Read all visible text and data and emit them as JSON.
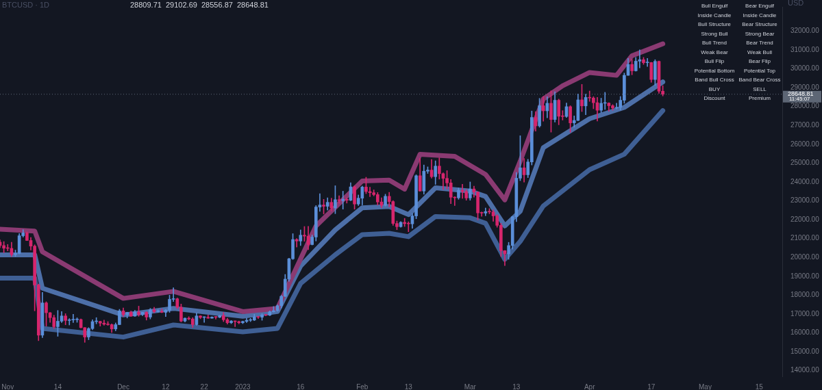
{
  "chart_data": {
    "type": "candlestick",
    "title": "BTCUSD · 1D",
    "ylabel": "USD",
    "x": [
      "2022-10-30",
      "2022-10-31",
      "2022-11-01",
      "2022-11-02",
      "2022-11-03",
      "2022-11-04",
      "2022-11-05",
      "2022-11-06",
      "2022-11-07",
      "2022-11-08",
      "2022-11-09",
      "2022-11-10",
      "2022-11-11",
      "2022-11-12",
      "2022-11-13",
      "2022-11-14",
      "2022-11-15",
      "2022-11-16",
      "2022-11-17",
      "2022-11-18",
      "2022-11-19",
      "2022-11-20",
      "2022-11-21",
      "2022-11-22",
      "2022-11-23",
      "2022-11-24",
      "2022-11-25",
      "2022-11-26",
      "2022-11-27",
      "2022-11-28",
      "2022-11-29",
      "2022-11-30",
      "2022-12-01",
      "2022-12-02",
      "2022-12-03",
      "2022-12-04",
      "2022-12-05",
      "2022-12-06",
      "2022-12-07",
      "2022-12-08",
      "2022-12-09",
      "2022-12-10",
      "2022-12-11",
      "2022-12-12",
      "2022-12-13",
      "2022-12-14",
      "2022-12-15",
      "2022-12-16",
      "2022-12-17",
      "2022-12-18",
      "2022-12-19",
      "2022-12-20",
      "2022-12-21",
      "2022-12-22",
      "2022-12-23",
      "2022-12-24",
      "2022-12-25",
      "2022-12-26",
      "2022-12-27",
      "2022-12-28",
      "2022-12-29",
      "2022-12-30",
      "2022-12-31",
      "2023-01-01",
      "2023-01-02",
      "2023-01-03",
      "2023-01-04",
      "2023-01-05",
      "2023-01-06",
      "2023-01-07",
      "2023-01-08",
      "2023-01-09",
      "2023-01-10",
      "2023-01-11",
      "2023-01-12",
      "2023-01-13",
      "2023-01-14",
      "2023-01-15",
      "2023-01-16",
      "2023-01-17",
      "2023-01-18",
      "2023-01-19",
      "2023-01-20",
      "2023-01-21",
      "2023-01-22",
      "2023-01-23",
      "2023-01-24",
      "2023-01-25",
      "2023-01-26",
      "2023-01-27",
      "2023-01-28",
      "2023-01-29",
      "2023-01-30",
      "2023-01-31",
      "2023-02-01",
      "2023-02-02",
      "2023-02-03",
      "2023-02-04",
      "2023-02-05",
      "2023-02-06",
      "2023-02-07",
      "2023-02-08",
      "2023-02-09",
      "2023-02-10",
      "2023-02-11",
      "2023-02-12",
      "2023-02-13",
      "2023-02-14",
      "2023-02-15",
      "2023-02-16",
      "2023-02-17",
      "2023-02-18",
      "2023-02-19",
      "2023-02-20",
      "2023-02-21",
      "2023-02-22",
      "2023-02-23",
      "2023-02-24",
      "2023-02-25",
      "2023-02-26",
      "2023-02-27",
      "2023-02-28",
      "2023-03-01",
      "2023-03-02",
      "2023-03-03",
      "2023-03-04",
      "2023-03-05",
      "2023-03-06",
      "2023-03-07",
      "2023-03-08",
      "2023-03-09",
      "2023-03-10",
      "2023-03-11",
      "2023-03-12",
      "2023-03-13",
      "2023-03-14",
      "2023-03-15",
      "2023-03-16",
      "2023-03-17",
      "2023-03-18",
      "2023-03-19",
      "2023-03-20",
      "2023-03-21",
      "2023-03-22",
      "2023-03-23",
      "2023-03-24",
      "2023-03-25",
      "2023-03-26",
      "2023-03-27",
      "2023-03-28",
      "2023-03-29",
      "2023-03-30",
      "2023-03-31",
      "2023-04-01",
      "2023-04-02",
      "2023-04-03",
      "2023-04-04",
      "2023-04-05",
      "2023-04-06",
      "2023-04-07",
      "2023-04-08",
      "2023-04-09",
      "2023-04-10",
      "2023-04-11",
      "2023-04-12",
      "2023-04-13",
      "2023-04-14",
      "2023-04-15",
      "2023-04-16",
      "2023-04-17",
      "2023-04-18",
      "2023-04-19",
      "2023-04-20"
    ],
    "ohlc": [
      [
        20810,
        20930,
        20520,
        20630
      ],
      [
        20630,
        20840,
        20250,
        20490
      ],
      [
        20490,
        20690,
        20350,
        20480
      ],
      [
        20480,
        20800,
        20050,
        20150
      ],
      [
        20150,
        20390,
        20050,
        20210
      ],
      [
        20210,
        21270,
        20180,
        21150
      ],
      [
        21150,
        21470,
        21080,
        21300
      ],
      [
        21300,
        21360,
        20890,
        20900
      ],
      [
        20900,
        21060,
        20390,
        20600
      ],
      [
        20600,
        20670,
        17170,
        18540
      ],
      [
        18540,
        18590,
        15590,
        15880
      ],
      [
        15880,
        18150,
        15750,
        17590
      ],
      [
        17590,
        17650,
        16360,
        17070
      ],
      [
        17070,
        17090,
        16560,
        16810
      ],
      [
        16810,
        16940,
        16230,
        16330
      ],
      [
        16330,
        17190,
        15820,
        16620
      ],
      [
        16620,
        17130,
        16550,
        16900
      ],
      [
        16900,
        17020,
        16430,
        16660
      ],
      [
        16660,
        16760,
        16420,
        16690
      ],
      [
        16690,
        16990,
        16550,
        16700
      ],
      [
        16700,
        16800,
        16560,
        16710
      ],
      [
        16710,
        16740,
        16260,
        16280
      ],
      [
        16280,
        16290,
        15500,
        15780
      ],
      [
        15780,
        16280,
        15640,
        16230
      ],
      [
        16230,
        16700,
        16170,
        16600
      ],
      [
        16600,
        16810,
        16480,
        16610
      ],
      [
        16610,
        16620,
        16360,
        16520
      ],
      [
        16520,
        16680,
        16400,
        16460
      ],
      [
        16460,
        16600,
        16400,
        16440
      ],
      [
        16440,
        16480,
        16020,
        16210
      ],
      [
        16210,
        16530,
        16110,
        16440
      ],
      [
        16440,
        17250,
        16430,
        17170
      ],
      [
        17170,
        17320,
        16870,
        16970
      ],
      [
        16970,
        17100,
        16790,
        17090
      ],
      [
        17090,
        17160,
        16870,
        16890
      ],
      [
        16890,
        17200,
        16880,
        17110
      ],
      [
        17110,
        17420,
        16880,
        16970
      ],
      [
        16970,
        17100,
        16910,
        17090
      ],
      [
        17090,
        17130,
        16680,
        16840
      ],
      [
        16840,
        17300,
        16740,
        17230
      ],
      [
        17230,
        17360,
        17070,
        17130
      ],
      [
        17130,
        17230,
        17090,
        17140
      ],
      [
        17140,
        17270,
        17070,
        17090
      ],
      [
        17090,
        17240,
        16870,
        17210
      ],
      [
        17210,
        18000,
        17090,
        17780
      ],
      [
        17780,
        18390,
        17660,
        17810
      ],
      [
        17810,
        17850,
        17280,
        17360
      ],
      [
        17360,
        17530,
        16580,
        16630
      ],
      [
        16630,
        16800,
        16580,
        16780
      ],
      [
        16780,
        16860,
        16690,
        16740
      ],
      [
        16740,
        16810,
        16290,
        16440
      ],
      [
        16440,
        17060,
        16400,
        16900
      ],
      [
        16900,
        16920,
        16750,
        16820
      ],
      [
        16820,
        16860,
        16560,
        16830
      ],
      [
        16830,
        16950,
        16770,
        16780
      ],
      [
        16780,
        16860,
        16770,
        16840
      ],
      [
        16840,
        16860,
        16730,
        16830
      ],
      [
        16830,
        16940,
        16800,
        16920
      ],
      [
        16920,
        17080,
        16600,
        16700
      ],
      [
        16700,
        16780,
        16470,
        16540
      ],
      [
        16540,
        16660,
        16490,
        16630
      ],
      [
        16630,
        16640,
        16330,
        16600
      ],
      [
        16600,
        16630,
        16480,
        16540
      ],
      [
        16540,
        16630,
        16490,
        16610
      ],
      [
        16610,
        16780,
        16550,
        16670
      ],
      [
        16670,
        16770,
        16600,
        16680
      ],
      [
        16680,
        16990,
        16650,
        16850
      ],
      [
        16850,
        16880,
        16760,
        16830
      ],
      [
        16830,
        17020,
        16670,
        16950
      ],
      [
        16950,
        16960,
        16900,
        16940
      ],
      [
        16940,
        17170,
        16910,
        17120
      ],
      [
        17120,
        17400,
        17100,
        17180
      ],
      [
        17180,
        17490,
        17150,
        17440
      ],
      [
        17440,
        17990,
        17320,
        17940
      ],
      [
        17940,
        19100,
        17920,
        18850
      ],
      [
        18850,
        19960,
        18730,
        19930
      ],
      [
        19930,
        21260,
        19890,
        20950
      ],
      [
        20950,
        21000,
        20550,
        20870
      ],
      [
        20870,
        21460,
        20630,
        21180
      ],
      [
        21180,
        21640,
        20860,
        21130
      ],
      [
        21130,
        21650,
        20410,
        20680
      ],
      [
        20680,
        21190,
        20660,
        21080
      ],
      [
        21080,
        22750,
        20870,
        22670
      ],
      [
        22670,
        23380,
        22440,
        22780
      ],
      [
        22780,
        23080,
        22300,
        22710
      ],
      [
        22710,
        23160,
        22510,
        22920
      ],
      [
        22920,
        23140,
        22460,
        22620
      ],
      [
        22620,
        23800,
        22320,
        23060
      ],
      [
        23060,
        23270,
        22870,
        23010
      ],
      [
        23010,
        23510,
        22560,
        23080
      ],
      [
        23080,
        23170,
        22880,
        23030
      ],
      [
        23030,
        23960,
        23000,
        23740
      ],
      [
        23740,
        23790,
        22560,
        22830
      ],
      [
        22830,
        23310,
        22750,
        23140
      ],
      [
        23140,
        23780,
        22780,
        23730
      ],
      [
        23730,
        24250,
        23380,
        23490
      ],
      [
        23490,
        23720,
        23220,
        23430
      ],
      [
        23430,
        23580,
        23260,
        23330
      ],
      [
        23330,
        23440,
        22770,
        22940
      ],
      [
        22940,
        23160,
        22630,
        22760
      ],
      [
        22760,
        23350,
        22720,
        23240
      ],
      [
        23240,
        23450,
        22680,
        22960
      ],
      [
        22960,
        23010,
        21700,
        21800
      ],
      [
        21800,
        21930,
        21470,
        21630
      ],
      [
        21630,
        21900,
        21600,
        21860
      ],
      [
        21860,
        22070,
        21640,
        21790
      ],
      [
        21790,
        21890,
        21360,
        21780
      ],
      [
        21780,
        22320,
        21540,
        22200
      ],
      [
        22200,
        24380,
        22050,
        24330
      ],
      [
        24330,
        25250,
        23510,
        23520
      ],
      [
        23520,
        24900,
        23350,
        24570
      ],
      [
        24570,
        24800,
        24450,
        24630
      ],
      [
        24630,
        25190,
        24200,
        24280
      ],
      [
        24280,
        25120,
        23870,
        24840
      ],
      [
        24840,
        25280,
        24150,
        24440
      ],
      [
        24440,
        24480,
        23590,
        24190
      ],
      [
        24190,
        24600,
        23620,
        23950
      ],
      [
        23950,
        24130,
        22850,
        23190
      ],
      [
        23190,
        23220,
        22750,
        23160
      ],
      [
        23160,
        23680,
        23080,
        23560
      ],
      [
        23560,
        23880,
        23130,
        23490
      ],
      [
        23490,
        23600,
        23030,
        23150
      ],
      [
        23150,
        24000,
        23030,
        23630
      ],
      [
        23630,
        23780,
        23190,
        23470
      ],
      [
        23470,
        23480,
        21990,
        22360
      ],
      [
        22360,
        22410,
        22180,
        22350
      ],
      [
        22350,
        22620,
        22210,
        22430
      ],
      [
        22430,
        22590,
        22310,
        22410
      ],
      [
        22410,
        22530,
        21920,
        22200
      ],
      [
        22200,
        22270,
        21600,
        21700
      ],
      [
        21700,
        21810,
        20050,
        20360
      ],
      [
        20360,
        20370,
        19570,
        20190
      ],
      [
        20190,
        20800,
        19900,
        20630
      ],
      [
        20630,
        22180,
        20440,
        22160
      ],
      [
        22160,
        24500,
        21900,
        24200
      ],
      [
        24200,
        26450,
        24070,
        24750
      ],
      [
        24750,
        25250,
        23990,
        24380
      ],
      [
        24380,
        25200,
        24230,
        25060
      ],
      [
        25060,
        27760,
        24900,
        27420
      ],
      [
        27420,
        27730,
        26690,
        26970
      ],
      [
        26970,
        28430,
        26900,
        28040
      ],
      [
        28040,
        28530,
        27220,
        27770
      ],
      [
        27770,
        28520,
        27400,
        28170
      ],
      [
        28170,
        28830,
        26640,
        27310
      ],
      [
        27310,
        28780,
        27170,
        28330
      ],
      [
        28330,
        28390,
        27030,
        27480
      ],
      [
        27480,
        27780,
        27280,
        27470
      ],
      [
        27470,
        28180,
        27420,
        27990
      ],
      [
        27990,
        28040,
        26630,
        27130
      ],
      [
        27130,
        27500,
        26900,
        27260
      ],
      [
        27260,
        28660,
        27250,
        28350
      ],
      [
        28350,
        29170,
        27730,
        28030
      ],
      [
        28030,
        28650,
        27560,
        28480
      ],
      [
        28480,
        28820,
        28270,
        28450
      ],
      [
        28450,
        28520,
        27880,
        28200
      ],
      [
        28200,
        28480,
        27230,
        27800
      ],
      [
        27800,
        28440,
        27680,
        28170
      ],
      [
        28170,
        28750,
        27840,
        28180
      ],
      [
        28180,
        28200,
        27740,
        28040
      ],
      [
        28040,
        28100,
        27800,
        27920
      ],
      [
        27920,
        28170,
        27870,
        27950
      ],
      [
        27950,
        28530,
        27810,
        28330
      ],
      [
        28330,
        29770,
        28170,
        29650
      ],
      [
        29650,
        30550,
        29650,
        30230
      ],
      [
        30230,
        30500,
        29680,
        29890
      ],
      [
        29890,
        30600,
        29870,
        30400
      ],
      [
        30400,
        31000,
        30050,
        30480
      ],
      [
        30480,
        30600,
        30230,
        30320
      ],
      [
        30320,
        30550,
        30120,
        30330
      ],
      [
        30330,
        30340,
        29280,
        29430
      ],
      [
        29430,
        30480,
        29120,
        30390
      ],
      [
        30390,
        30410,
        28700,
        28809.71
      ],
      [
        28809.71,
        29102.69,
        28556.87,
        28648.81
      ]
    ],
    "colors": [
      "#d6266d",
      "#d6266d",
      "#d6266d",
      "#d6266d",
      "#5b8fd9",
      "#5b8fd9",
      "#5b8fd9",
      "#d6266d",
      "#d6266d",
      "#d6266d",
      "#d6266d",
      "#5b8fd9",
      "#d6266d",
      "#d6266d",
      "#d6266d",
      "#5b8fd9",
      "#5b8fd9",
      "#d6266d",
      "#5b8fd9",
      "#5b8fd9",
      "#5b8fd9",
      "#d6266d",
      "#d6266d",
      "#5b8fd9",
      "#5b8fd9",
      "#5b8fd9",
      "#d6266d",
      "#d6266d",
      "#d6266d",
      "#d6266d",
      "#5b8fd9",
      "#5b8fd9",
      "#d6266d",
      "#5b8fd9",
      "#d6266d",
      "#5b8fd9",
      "#d6266d",
      "#5b8fd9",
      "#d6266d",
      "#5b8fd9",
      "#d6266d",
      "#5b8fd9",
      "#d6266d",
      "#5b8fd9",
      "#5b8fd9",
      "#5b8fd9",
      "#d6266d",
      "#d6266d",
      "#5b8fd9",
      "#d6266d",
      "#d6266d",
      "#5b8fd9",
      "#d6266d",
      "#5b8fd9",
      "#d6266d",
      "#5b8fd9",
      "#d6266d",
      "#5b8fd9",
      "#d6266d",
      "#d6266d",
      "#5b8fd9",
      "#d6266d",
      "#d6266d",
      "#5b8fd9",
      "#5b8fd9",
      "#5b8fd9",
      "#5b8fd9",
      "#d6266d",
      "#5b8fd9",
      "#d6266d",
      "#5b8fd9",
      "#5b8fd9",
      "#5b8fd9",
      "#5b8fd9",
      "#5b8fd9",
      "#5b8fd9",
      "#5b8fd9",
      "#d6266d",
      "#5b8fd9",
      "#d6266d",
      "#d6266d",
      "#5b8fd9",
      "#5b8fd9",
      "#5b8fd9",
      "#d6266d",
      "#5b8fd9",
      "#d6266d",
      "#5b8fd9",
      "#d6266d",
      "#5b8fd9",
      "#d6266d",
      "#5b8fd9",
      "#d6266d",
      "#5b8fd9",
      "#5b8fd9",
      "#d6266d",
      "#d6266d",
      "#d6266d",
      "#d6266d",
      "#d6266d",
      "#5b8fd9",
      "#d6266d",
      "#d6266d",
      "#d6266d",
      "#5b8fd9",
      "#d6266d",
      "#d6266d",
      "#5b8fd9",
      "#5b8fd9",
      "#d6266d",
      "#5b8fd9",
      "#5b8fd9",
      "#d6266d",
      "#5b8fd9",
      "#d6266d",
      "#d6266d",
      "#d6266d",
      "#d6266d",
      "#d6266d",
      "#5b8fd9",
      "#d6266d",
      "#d6266d",
      "#5b8fd9",
      "#d6266d",
      "#d6266d",
      "#d6266d",
      "#5b8fd9",
      "#d6266d",
      "#d6266d",
      "#d6266d",
      "#d6266d",
      "#d6266d",
      "#5b8fd9",
      "#5b8fd9",
      "#5b8fd9",
      "#5b8fd9",
      "#d6266d",
      "#5b8fd9",
      "#5b8fd9",
      "#d6266d",
      "#5b8fd9",
      "#d6266d",
      "#5b8fd9",
      "#d6266d",
      "#5b8fd9",
      "#d6266d",
      "#d6266d",
      "#5b8fd9",
      "#d6266d",
      "#5b8fd9",
      "#5b8fd9",
      "#d6266d",
      "#5b8fd9",
      "#d6266d",
      "#d6266d",
      "#d6266d",
      "#5b8fd9",
      "#5b8fd9",
      "#d6266d",
      "#d6266d",
      "#5b8fd9",
      "#5b8fd9",
      "#5b8fd9",
      "#5b8fd9",
      "#d6266d",
      "#5b8fd9",
      "#5b8fd9",
      "#d6266d",
      "#5b8fd9",
      "#d6266d",
      "#5b8fd9",
      "#d6266d",
      "#d6266d"
    ],
    "series": [
      {
        "type": "line",
        "color": "#8a3a72",
        "x": [
          "2022-10-30",
          "2022-11-08",
          "2022-11-10",
          "2022-12-01",
          "2022-12-14",
          "2023-01-01",
          "2023-01-10",
          "2023-01-20",
          "2023-02-01",
          "2023-02-08",
          "2023-02-12",
          "2023-02-16",
          "2023-02-25",
          "2023-03-05",
          "2023-03-10",
          "2023-03-14",
          "2023-03-20",
          "2023-03-25",
          "2023-04-01",
          "2023-04-08",
          "2023-04-12",
          "2023-04-20"
        ],
        "values": [
          21500,
          21400,
          20300,
          17830,
          18200,
          17130,
          17300,
          21670,
          24050,
          24100,
          23620,
          25470,
          25360,
          24400,
          23050,
          25100,
          28400,
          29100,
          29800,
          29650,
          30690,
          31320
        ]
      },
      {
        "type": "line",
        "color": "#4d6fa8",
        "x": [
          "2022-10-30",
          "2022-11-08",
          "2022-11-10",
          "2022-12-01",
          "2022-12-14",
          "2023-01-01",
          "2023-01-10",
          "2023-01-16",
          "2023-01-25",
          "2023-02-01",
          "2023-02-08",
          "2023-02-13",
          "2023-02-20",
          "2023-03-01",
          "2023-03-05",
          "2023-03-10",
          "2023-03-14",
          "2023-03-20",
          "2023-04-01",
          "2023-04-10",
          "2023-04-20"
        ],
        "values": [
          20140,
          20140,
          18370,
          16950,
          17300,
          16880,
          17130,
          19540,
          21460,
          22630,
          22700,
          22270,
          23690,
          23520,
          23230,
          21670,
          22450,
          25820,
          27350,
          27950,
          29300
        ]
      },
      {
        "type": "line",
        "color": "#3f5f94",
        "x": [
          "2022-10-30",
          "2022-11-08",
          "2022-11-10",
          "2022-12-01",
          "2022-12-14",
          "2023-01-01",
          "2023-01-10",
          "2023-01-16",
          "2023-01-25",
          "2023-02-01",
          "2023-02-08",
          "2023-02-13",
          "2023-02-20",
          "2023-03-01",
          "2023-03-05",
          "2023-03-10",
          "2023-03-14",
          "2023-03-20",
          "2023-04-01",
          "2023-04-10",
          "2023-04-20"
        ],
        "values": [
          18900,
          18900,
          16240,
          15780,
          16420,
          16060,
          16240,
          18620,
          20140,
          21210,
          21280,
          21100,
          22170,
          22100,
          21810,
          19900,
          20850,
          22730,
          24650,
          25470,
          27780
        ]
      }
    ],
    "xlim": [
      "2022-10-30",
      "2023-05-21"
    ],
    "xticks": [
      {
        "value": "2022-11-01",
        "label": "Nov"
      },
      {
        "value": "2022-11-14",
        "label": "14"
      },
      {
        "value": "2022-12-01",
        "label": "Dec"
      },
      {
        "value": "2022-12-12",
        "label": "12"
      },
      {
        "value": "2022-12-22",
        "label": "22"
      },
      {
        "value": "2023-01-01",
        "label": "2023"
      },
      {
        "value": "2023-01-16",
        "label": "16"
      },
      {
        "value": "2023-02-01",
        "label": "Feb"
      },
      {
        "value": "2023-02-13",
        "label": "13"
      },
      {
        "value": "2023-03-01",
        "label": "Mar"
      },
      {
        "value": "2023-03-13",
        "label": "13"
      },
      {
        "value": "2023-04-01",
        "label": "Apr"
      },
      {
        "value": "2023-04-17",
        "label": "17"
      },
      {
        "value": "2023-05-01",
        "label": "May"
      },
      {
        "value": "2023-05-15",
        "label": "15"
      }
    ],
    "ylim": [
      13700,
      33280
    ],
    "yticks": [
      {
        "value": 14000,
        "label": "14000.00"
      },
      {
        "value": 15000,
        "label": "15000.00"
      },
      {
        "value": 16000,
        "label": "16000.00"
      },
      {
        "value": 17000,
        "label": "17000.00"
      },
      {
        "value": 18000,
        "label": "18000.00"
      },
      {
        "value": 19000,
        "label": "19000.00"
      },
      {
        "value": 20000,
        "label": "20000.00"
      },
      {
        "value": 21000,
        "label": "21000.00"
      },
      {
        "value": 22000,
        "label": "22000.00"
      },
      {
        "value": 23000,
        "label": "23000.00"
      },
      {
        "value": 24000,
        "label": "24000.00"
      },
      {
        "value": 25000,
        "label": "25000.00"
      },
      {
        "value": 26000,
        "label": "26000.00"
      },
      {
        "value": 27000,
        "label": "27000.00"
      },
      {
        "value": 28000,
        "label": "28000.00"
      },
      {
        "value": 29000,
        "label": "29000.00"
      },
      {
        "value": 30000,
        "label": "30000.00"
      },
      {
        "value": 31000,
        "label": "31000.00"
      },
      {
        "value": 32000,
        "label": "32000.00"
      }
    ],
    "ref_lines": [
      {
        "axis": "y",
        "value": 28648.81,
        "label": "28648.81",
        "color": "#5d6675",
        "line_style": "dotted"
      }
    ],
    "annotations": [
      "28809.71",
      "29102.69",
      "28556.87",
      "28648.81",
      "11:45:07",
      "Bull Engulf",
      "Bear Engulf",
      "Inside Candle",
      "Inside Candle",
      "Bull Structure",
      "Bear Structure",
      "Strong Bull",
      "Strong Bear",
      "Bull Trend",
      "Bear Trend",
      "Weak Bear",
      "Weak Bull",
      "Bull Flip",
      "Bear Flip",
      "Potential Bottom",
      "Potential Top",
      "Band Bull Cross",
      "Band Bear Cross",
      "BUY",
      "SELL",
      "Discount",
      "Premium"
    ],
    "legend": false
  }
}
